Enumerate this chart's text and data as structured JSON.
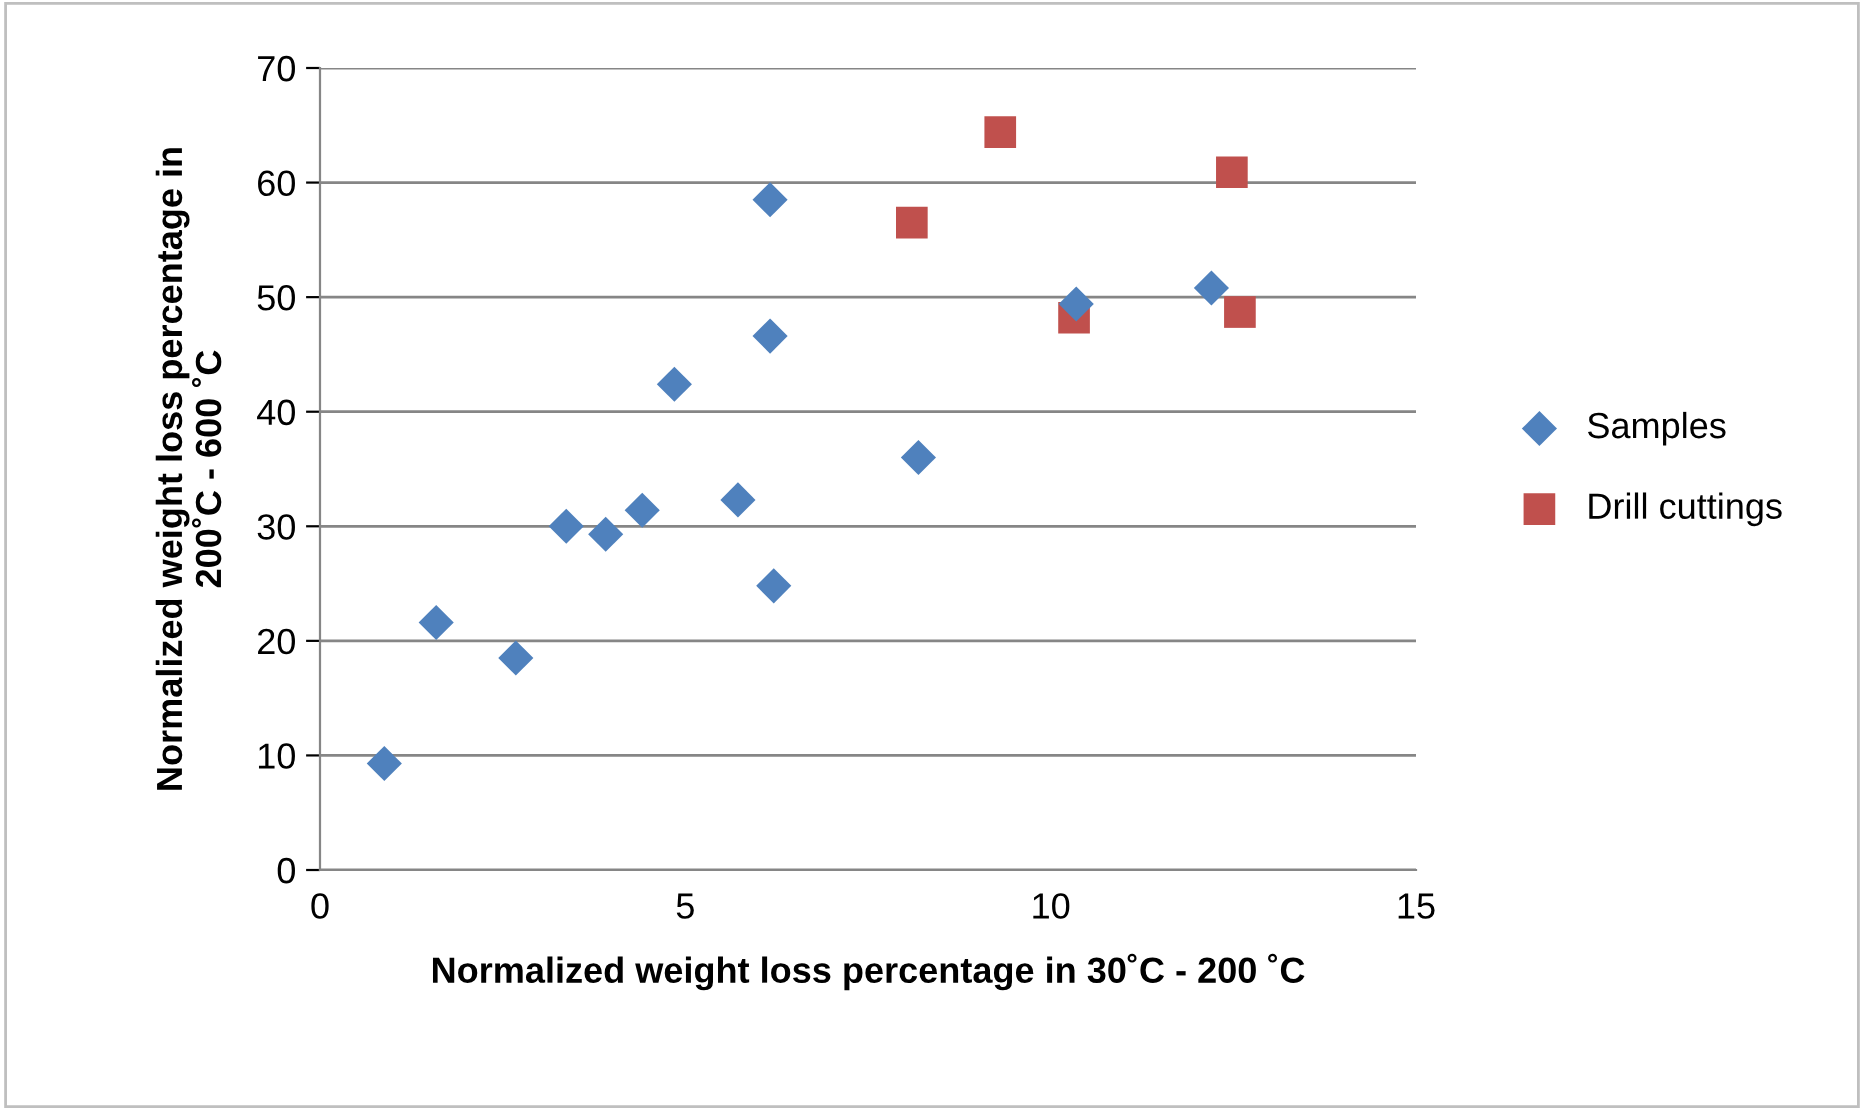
{
  "chart_data": {
    "type": "scatter",
    "xlabel": "Normalized weight loss percentage in 30˚C - 200 ˚C",
    "ylabel": "Normalized weight loss percentage in\n200˚C - 600 ˚C",
    "xlim": [
      0,
      15
    ],
    "xticks": [
      0,
      5,
      10,
      15
    ],
    "ylim": [
      0,
      70
    ],
    "yticks": [
      0,
      10,
      20,
      30,
      40,
      50,
      60,
      70
    ],
    "grid": "y",
    "legend": "right",
    "series": [
      {
        "name": "Samples",
        "color": "#4f81bd",
        "marker": "diamond",
        "x": [
          0.88,
          1.59,
          2.68,
          3.37,
          3.91,
          4.41,
          4.85,
          5.72,
          6.16,
          6.16,
          6.21,
          8.19,
          10.35,
          12.2
        ],
        "values": [
          9.3,
          21.6,
          18.5,
          30.0,
          29.3,
          31.4,
          42.4,
          32.3,
          58.5,
          46.6,
          24.8,
          36.0,
          49.4,
          50.8
        ]
      },
      {
        "name": "Drill cuttings",
        "color": "#c0504d",
        "marker": "square",
        "x": [
          8.1,
          9.31,
          10.32,
          12.48,
          12.59
        ],
        "values": [
          56.5,
          64.4,
          48.2,
          60.9,
          48.7
        ]
      }
    ]
  }
}
